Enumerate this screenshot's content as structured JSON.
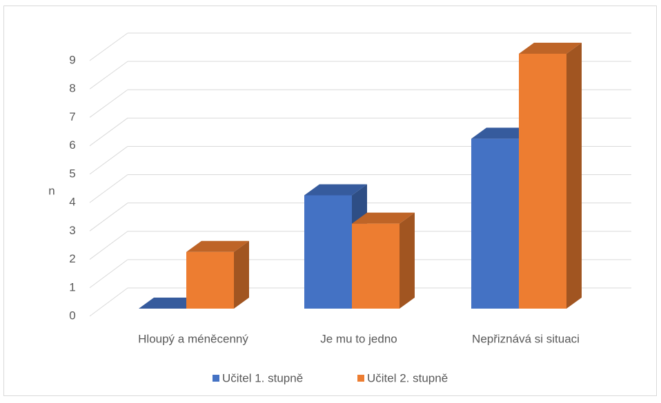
{
  "chart_data": {
    "type": "bar3d",
    "y_label": "n",
    "categories": [
      "Hloupý a méněcenný",
      "Je mu to jedno",
      "Nepřiznává si situaci"
    ],
    "series": [
      {
        "name": "Učitel 1. stupně",
        "color": "#4472c4",
        "values": [
          0,
          4,
          6
        ]
      },
      {
        "name": "Učitel 2. stupně",
        "color": "#ed7d31",
        "values": [
          2,
          3,
          9
        ]
      }
    ],
    "ylim": [
      0,
      9
    ],
    "yticks": [
      0,
      1,
      2,
      3,
      4,
      5,
      6,
      7,
      8,
      9
    ],
    "grid": true,
    "legend": "bottom"
  }
}
